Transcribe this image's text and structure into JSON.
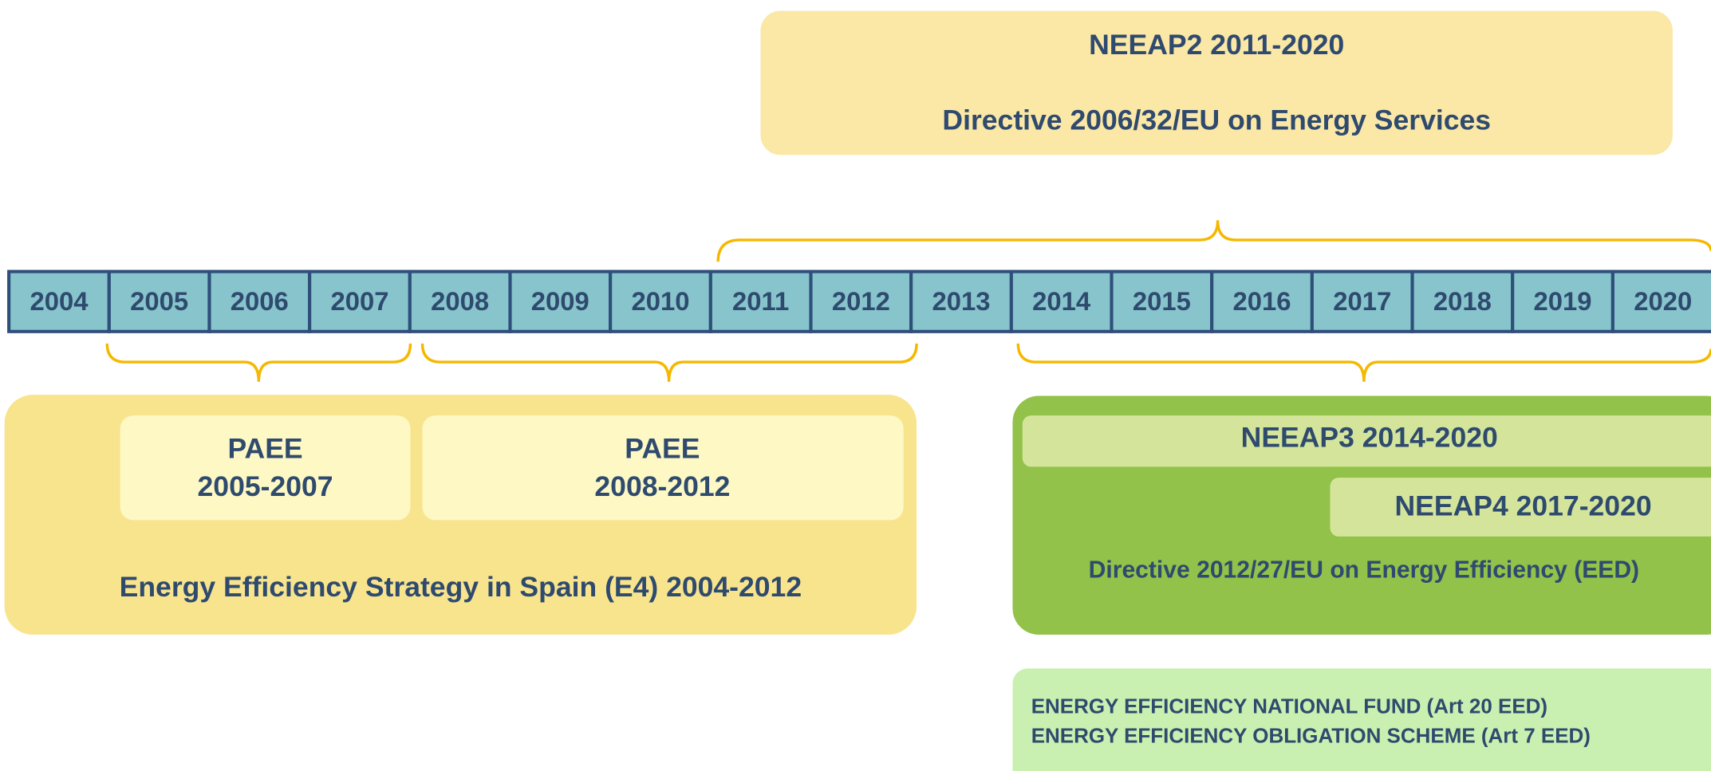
{
  "years": [
    "2004",
    "2005",
    "2006",
    "2007",
    "2008",
    "2009",
    "2010",
    "2011",
    "2012",
    "2013",
    "2014",
    "2015",
    "2016",
    "2017",
    "2018",
    "2019",
    "2020"
  ],
  "neeap2": {
    "title": "NEEAP2 2011-2020",
    "subtitle": "Directive 2006/32/EU on Energy Services"
  },
  "e4": {
    "paee1": {
      "line1": "PAEE",
      "line2": "2005-2007"
    },
    "paee2": {
      "line1": "PAEE",
      "line2": "2008-2012"
    },
    "label": "Energy Efficiency Strategy in Spain (E4)  2004-2012"
  },
  "eed": {
    "neeap3": "NEEAP3 2014-2020",
    "neeap4": "NEEAP4 2017-2020",
    "label": "Directive 2012/27/EU on Energy Efficiency (EED)"
  },
  "instruments": [
    "ENERGY EFFICIENCY NATIONAL FUND (Art 20 EED)",
    "ENERGY EFFICIENCY OBLIGATION SCHEME (Art 7 EED)"
  ]
}
